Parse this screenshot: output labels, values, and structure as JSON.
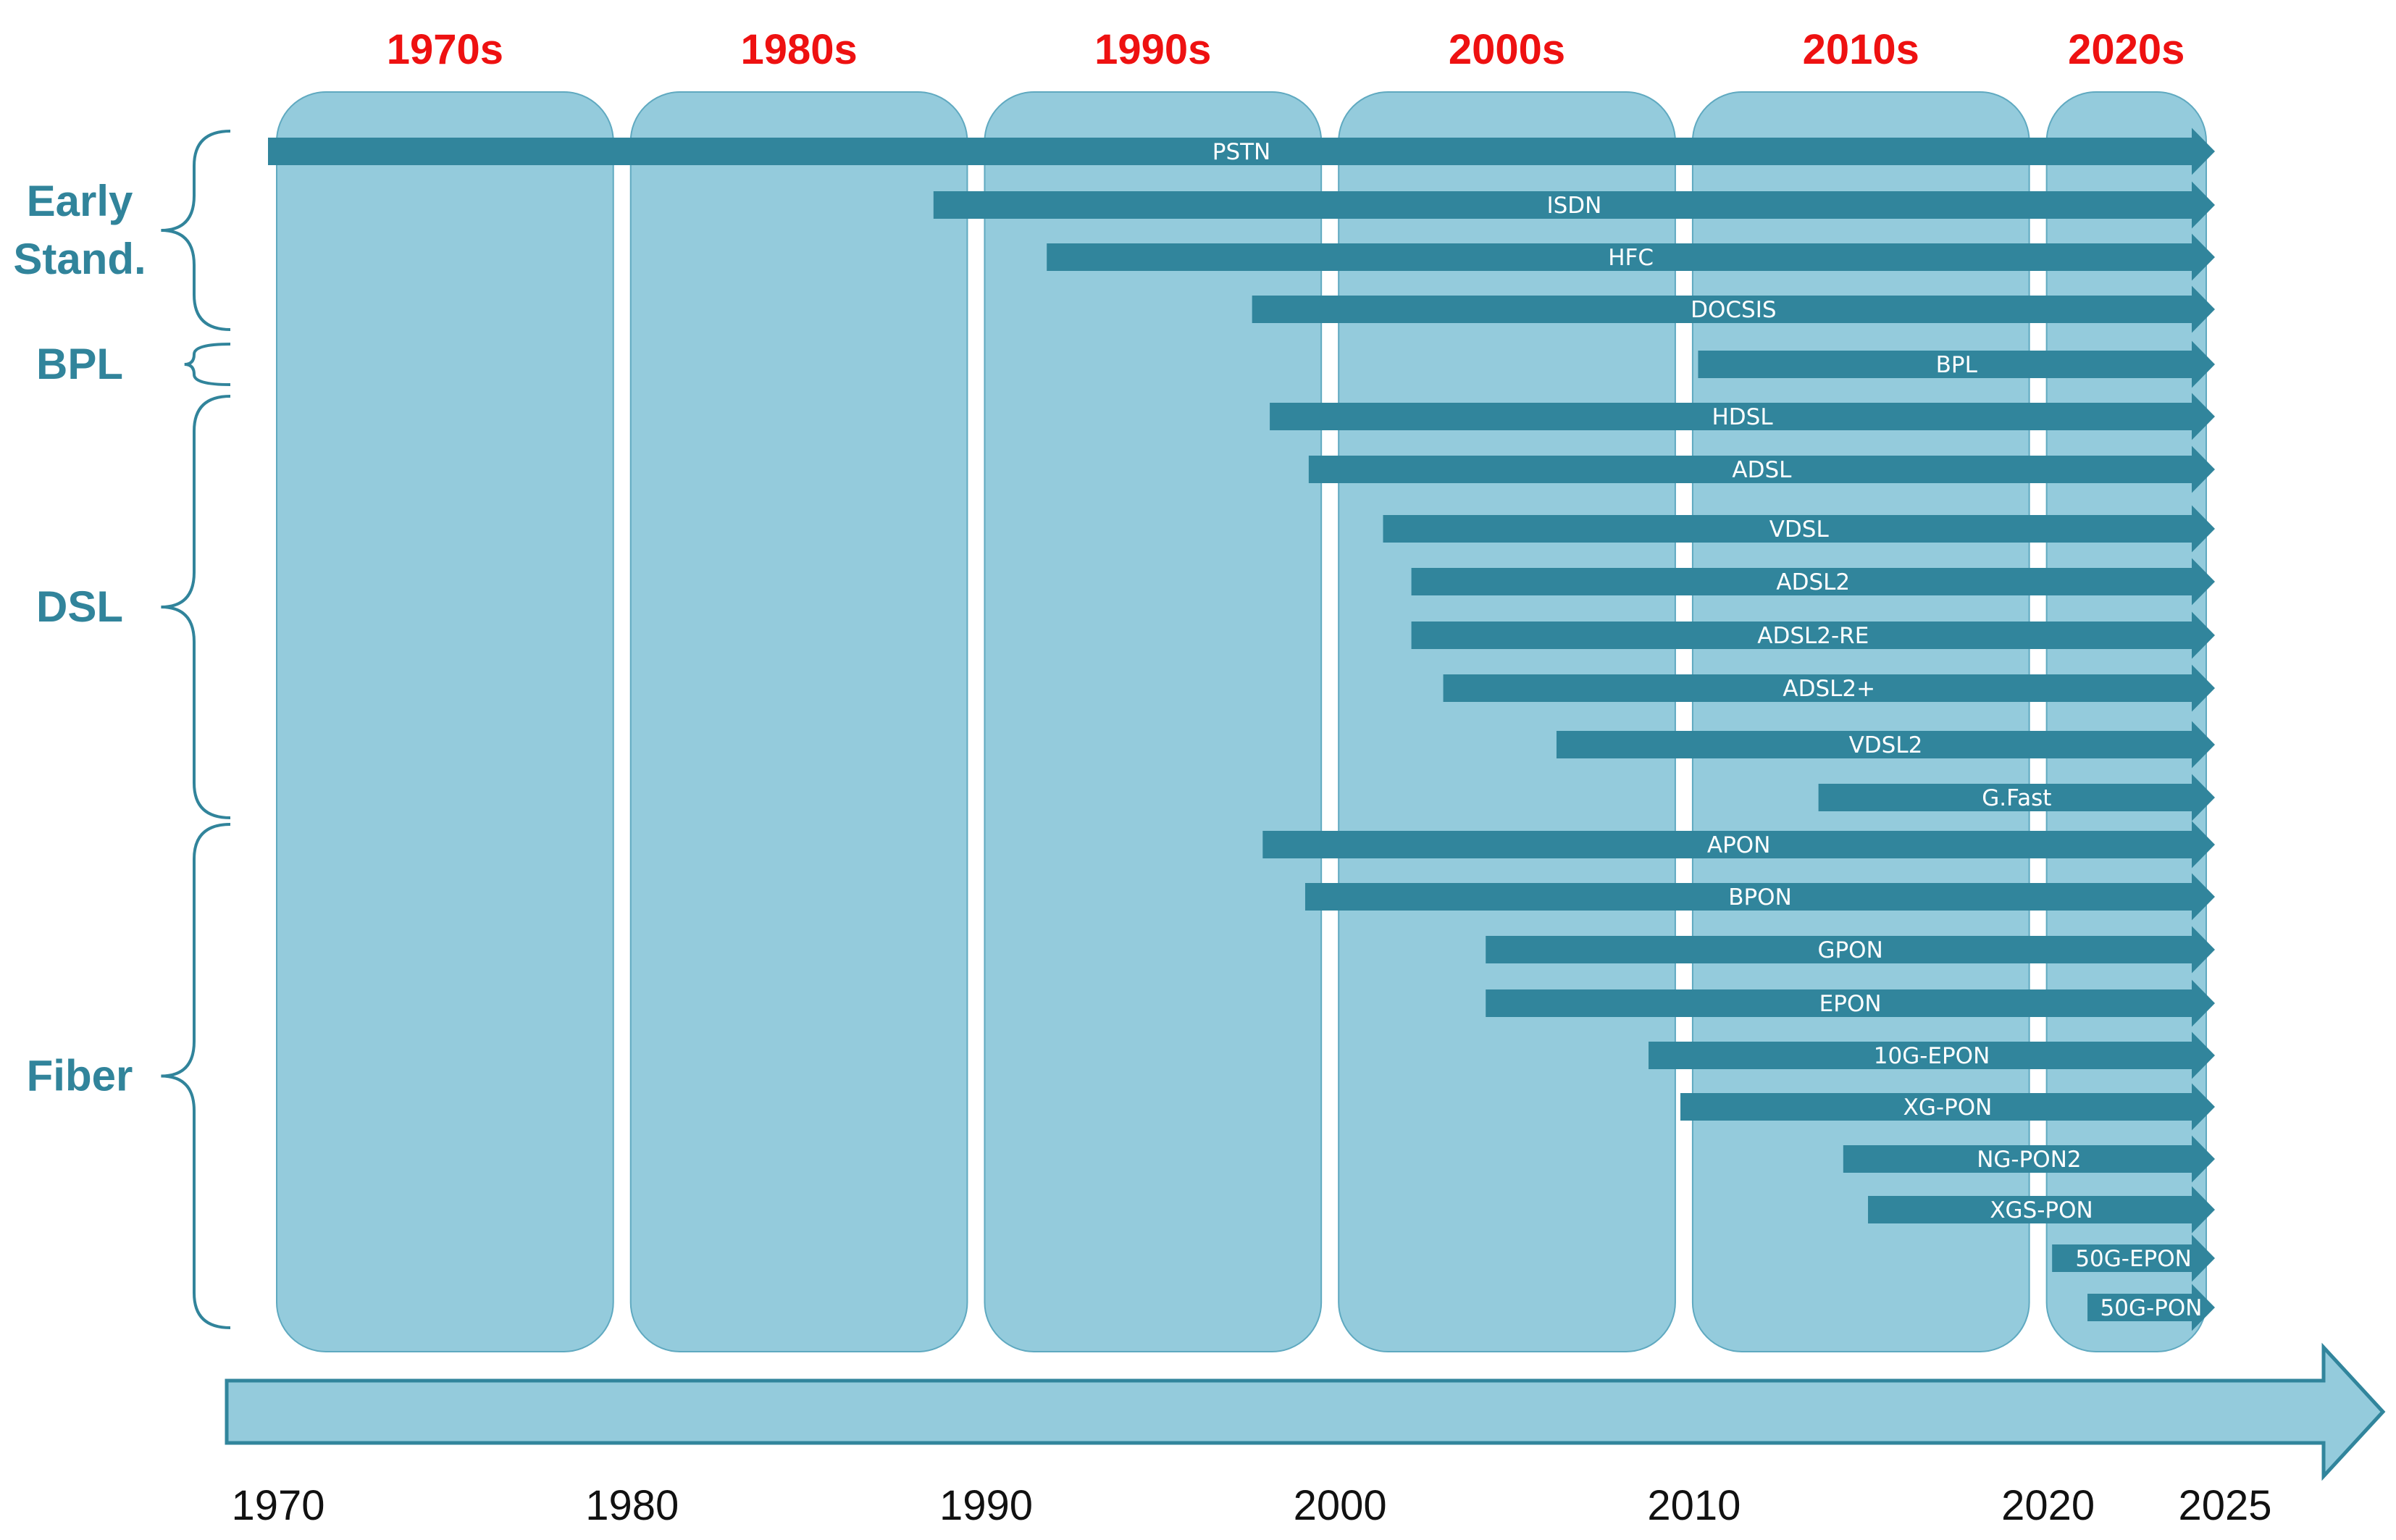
{
  "chart_data": {
    "type": "timeline",
    "title": "",
    "x_range": [
      1970,
      2025
    ],
    "decades": [
      {
        "label": "1970s",
        "start": 1970,
        "end": 1980
      },
      {
        "label": "1980s",
        "start": 1980,
        "end": 1990
      },
      {
        "label": "1990s",
        "start": 1990,
        "end": 2000
      },
      {
        "label": "2000s",
        "start": 2000,
        "end": 2010
      },
      {
        "label": "2010s",
        "start": 2010,
        "end": 2020
      },
      {
        "label": "2020s",
        "start": 2020,
        "end": 2025
      }
    ],
    "groups": [
      {
        "label_lines": [
          "Early",
          "Stand."
        ],
        "first": 0,
        "last": 3
      },
      {
        "label_lines": [
          "BPL"
        ],
        "first": 4,
        "last": 4
      },
      {
        "label_lines": [
          "DSL"
        ],
        "first": 5,
        "last": 12
      },
      {
        "label_lines": [
          "Fiber"
        ],
        "first": 13,
        "last": 22
      }
    ],
    "technologies": [
      {
        "name": "PSTN",
        "start": 1970,
        "end": 2025
      },
      {
        "name": "ISDN",
        "start": 1988.8,
        "end": 2025
      },
      {
        "name": "HFC",
        "start": 1992,
        "end": 2025
      },
      {
        "name": "DOCSIS",
        "start": 1997.8,
        "end": 2025
      },
      {
        "name": "BPL",
        "start": 2010.4,
        "end": 2025
      },
      {
        "name": "HDSL",
        "start": 1998.3,
        "end": 2025
      },
      {
        "name": "ADSL",
        "start": 1999.4,
        "end": 2025
      },
      {
        "name": "VDSL",
        "start": 2001.5,
        "end": 2025
      },
      {
        "name": "ADSL2",
        "start": 2002.3,
        "end": 2025
      },
      {
        "name": "ADSL2-RE",
        "start": 2002.3,
        "end": 2025
      },
      {
        "name": "ADSL2+",
        "start": 2003.2,
        "end": 2025
      },
      {
        "name": "VDSL2",
        "start": 2006.4,
        "end": 2025
      },
      {
        "name": "G.Fast",
        "start": 2013.8,
        "end": 2025
      },
      {
        "name": "APON",
        "start": 1998.1,
        "end": 2025
      },
      {
        "name": "BPON",
        "start": 1999.3,
        "end": 2025
      },
      {
        "name": "GPON",
        "start": 2004.4,
        "end": 2025
      },
      {
        "name": "EPON",
        "start": 2004.4,
        "end": 2025
      },
      {
        "name": "10G-EPON",
        "start": 2009,
        "end": 2025
      },
      {
        "name": "XG-PON",
        "start": 2009.9,
        "end": 2025
      },
      {
        "name": "NG-PON2",
        "start": 2014.5,
        "end": 2025
      },
      {
        "name": "XGS-PON",
        "start": 2015.2,
        "end": 2025
      },
      {
        "name": "50G-EPON",
        "start": 2020.4,
        "end": 2025
      },
      {
        "name": "50G-PON",
        "start": 2021.4,
        "end": 2025
      }
    ],
    "axis_ticks": [
      1970,
      1980,
      1990,
      2000,
      2010,
      2020,
      2025
    ],
    "colors": {
      "decade_fill": "#94cbdc",
      "decade_stroke": "#5fa9c0",
      "bar_fill": "#31859c",
      "decade_label": "#ee1111",
      "group_label": "#31849b",
      "axis_fill": "#94cbdc",
      "axis_stroke": "#31859c",
      "year_label": "#111111"
    }
  }
}
